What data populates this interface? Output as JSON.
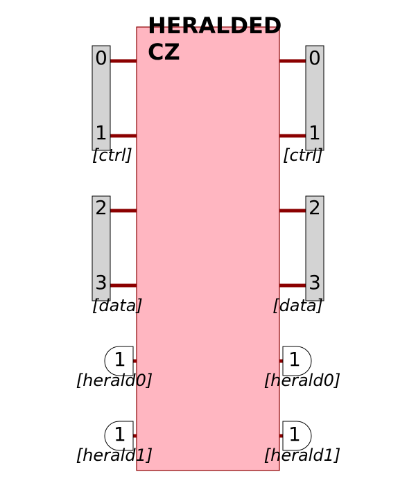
{
  "component": {
    "title_line1": "HERALDED",
    "title_line2": "CZ",
    "fill_color": "#ffb6c1",
    "border_color": "#8b0000"
  },
  "wire_color": "#8b0000",
  "port_box_color": "#d3d3d3",
  "left": {
    "ports": [
      {
        "mode": "0"
      },
      {
        "mode": "1"
      },
      {
        "mode": "2"
      },
      {
        "mode": "3"
      }
    ],
    "groups": [
      {
        "label": "[ctrl]"
      },
      {
        "label": "[data]"
      }
    ],
    "heralds": [
      {
        "value": "1",
        "label": "[herald0]"
      },
      {
        "value": "1",
        "label": "[herald1]"
      }
    ]
  },
  "right": {
    "ports": [
      {
        "mode": "0"
      },
      {
        "mode": "1"
      },
      {
        "mode": "2"
      },
      {
        "mode": "3"
      }
    ],
    "groups": [
      {
        "label": "[ctrl]"
      },
      {
        "label": "[data]"
      }
    ],
    "heralds": [
      {
        "value": "1",
        "label": "[herald0]"
      },
      {
        "value": "1",
        "label": "[herald1]"
      }
    ]
  }
}
